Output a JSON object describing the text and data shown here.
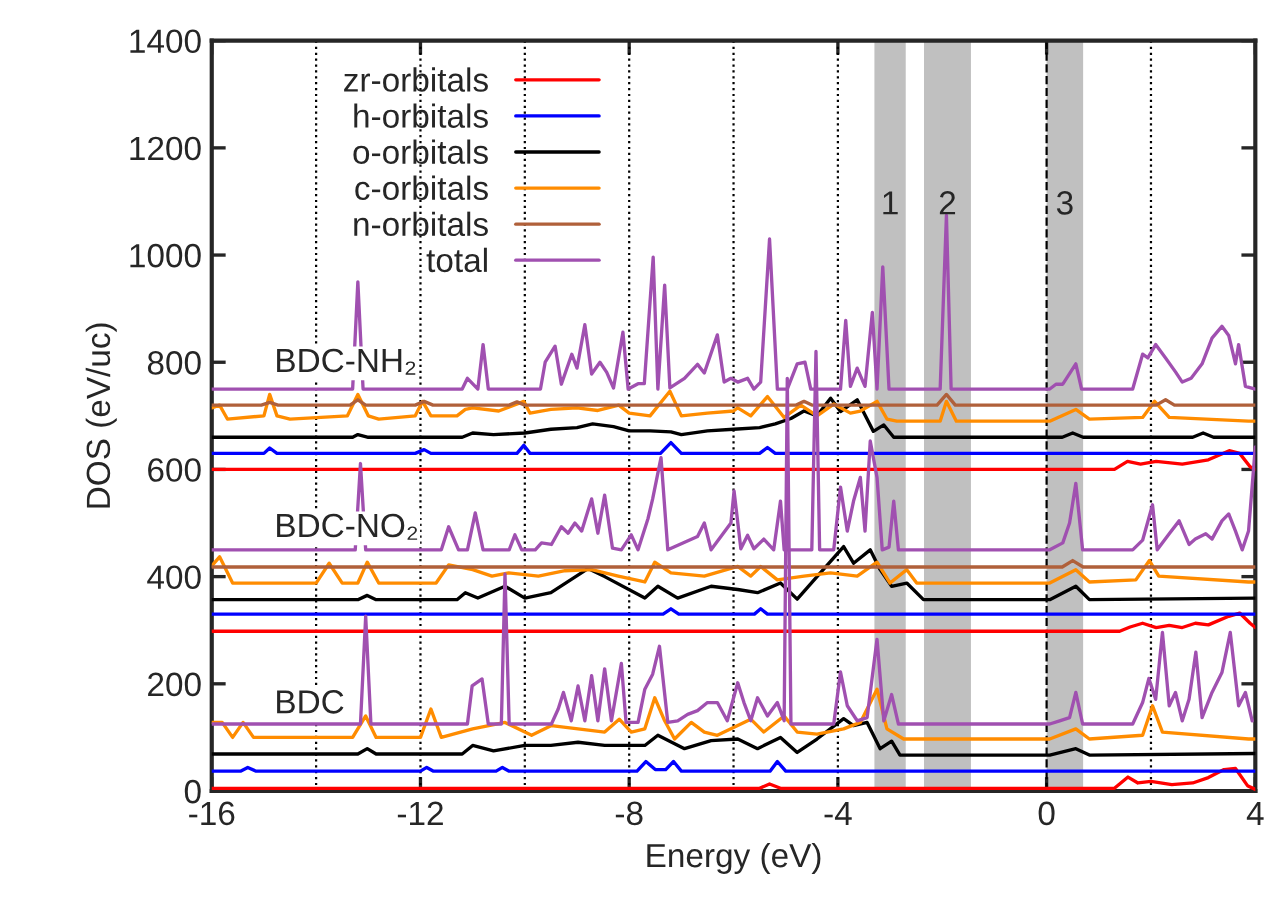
{
  "chart_data": {
    "type": "line",
    "xlabel": "Energy (eV)",
    "ylabel": "DOS (eV/uc)",
    "xlim": [
      -16,
      4
    ],
    "ylim": [
      0,
      1400
    ],
    "xticks": [
      -16,
      -12,
      -8,
      -4,
      0,
      4
    ],
    "yticks": [
      0,
      200,
      400,
      600,
      800,
      1000,
      1200,
      1400
    ],
    "grid": false,
    "legend": "top left",
    "marker": "none",
    "line_style": "solid",
    "series": [
      {
        "name": "zr-orbitals",
        "color": "#ff0000",
        "x": [
          -16,
          1.3,
          1.55,
          1.8,
          2.1,
          2.6,
          3.1,
          3.5,
          3.7,
          3.9,
          4
        ],
        "values": [
          600,
          600,
          615,
          610,
          615,
          610,
          618,
          635,
          630,
          605,
          600
        ]
      },
      {
        "name": "h-orbitals",
        "color": "#0000ff",
        "x": [
          -16,
          -15.0,
          -14.89,
          -14.75,
          -12.1,
          -11.93,
          -11.8,
          -10.15,
          -10.02,
          -9.9,
          -7.4,
          -7.2,
          -7.0,
          -5.5,
          -5.35,
          -5.2,
          4
        ],
        "values": [
          630,
          630,
          640,
          630,
          630,
          637,
          630,
          630,
          645,
          630,
          630,
          650,
          630,
          630,
          641,
          630,
          630
        ]
      },
      {
        "name": "o-orbitals",
        "color": "#000000",
        "x": [
          -16,
          -13.3,
          -13.2,
          -13.0,
          -11.2,
          -11.0,
          -10.6,
          -10.0,
          -9.5,
          -9.0,
          -8.7,
          -8.3,
          -8.0,
          -7.6,
          -7.2,
          -7.0,
          -6.5,
          -6.0,
          -5.5,
          -5.2,
          -4.9,
          -4.65,
          -4.4,
          -4.14,
          -3.95,
          -3.63,
          -3.32,
          -3.12,
          -2.93,
          0.3,
          0.5,
          0.7,
          2.8,
          3.0,
          3.2,
          4
        ],
        "values": [
          660,
          660,
          665,
          660,
          660,
          668,
          665,
          668,
          675,
          678,
          685,
          680,
          672,
          672,
          670,
          665,
          672,
          675,
          678,
          685,
          695,
          709,
          700,
          733,
          708,
          730,
          671,
          683,
          660,
          660,
          668,
          660,
          660,
          668,
          660,
          660
        ]
      },
      {
        "name": "c-orbitals",
        "color": "#ff8c00",
        "x": [
          -16,
          -15.85,
          -15.7,
          -15.0,
          -14.89,
          -14.75,
          -14.5,
          -13.4,
          -13.2,
          -13.0,
          -12.8,
          -12.1,
          -11.96,
          -11.8,
          -11.3,
          -11.14,
          -11.0,
          -10.5,
          -10.02,
          -9.9,
          -9.5,
          -9.0,
          -8.6,
          -8.2,
          -8.0,
          -7.6,
          -7.22,
          -7.0,
          -6.5,
          -6.0,
          -5.92,
          -5.67,
          -5.35,
          -5.03,
          -4.71,
          -4.4,
          -4.08,
          -3.76,
          -3.57,
          -3.25,
          -3.06,
          -2.87,
          -2.04,
          -1.92,
          -1.73,
          0.06,
          0.56,
          0.82,
          1.84,
          2.07,
          2.35,
          3.87,
          4
        ],
        "values": [
          715,
          720,
          694,
          700,
          740,
          700,
          694,
          700,
          740,
          700,
          694,
          700,
          727,
          700,
          700,
          712,
          715,
          709,
          727,
          705,
          712,
          715,
          710,
          720,
          705,
          700,
          746,
          700,
          705,
          709,
          715,
          700,
          736,
          697,
          720,
          700,
          722,
          705,
          709,
          727,
          694,
          690,
          690,
          727,
          690,
          690,
          712,
          694,
          697,
          727,
          697,
          690,
          690
        ]
      },
      {
        "name": "n-orbitals",
        "color": "#b0603a",
        "x": [
          -16,
          -15.05,
          -14.89,
          -14.73,
          -13.35,
          -13.2,
          -13.05,
          -12.1,
          -11.93,
          -11.76,
          -10.3,
          -10.15,
          -10.0,
          -4.8,
          -4.65,
          -4.5,
          -2.1,
          -1.92,
          -1.75,
          2.1,
          2.28,
          2.45,
          4
        ],
        "values": [
          720,
          720,
          725,
          720,
          720,
          730,
          720,
          720,
          727,
          720,
          720,
          726,
          720,
          720,
          727,
          720,
          720,
          740,
          720,
          720,
          730,
          720,
          720
        ]
      },
      {
        "name": "total",
        "color": "#a050b0",
        "x": [
          -16,
          -13.3,
          -13.2,
          -13.1,
          -11.2,
          -11.1,
          -10.9,
          -10.8,
          -10.7,
          -9.7,
          -9.61,
          -9.42,
          -9.3,
          -9.1,
          -9.0,
          -8.85,
          -8.72,
          -8.56,
          -8.43,
          -8.3,
          -8.12,
          -8.02,
          -7.83,
          -7.71,
          -7.54,
          -7.45,
          -7.32,
          -7.22,
          -6.94,
          -6.69,
          -6.56,
          -6.31,
          -6.18,
          -6.05,
          -5.92,
          -5.73,
          -5.61,
          -5.48,
          -5.31,
          -5.16,
          -4.97,
          -4.78,
          -4.63,
          -4.52,
          -3.95,
          -3.85,
          -3.76,
          -3.63,
          -3.48,
          -3.34,
          -3.25,
          -3.14,
          -3.02,
          -2.04,
          -1.92,
          -1.83,
          0.06,
          0.18,
          0.31,
          0.56,
          0.67,
          1.65,
          1.84,
          1.94,
          2.09,
          2.28,
          2.47,
          2.6,
          2.77,
          2.98,
          3.17,
          3.36,
          3.49,
          3.62,
          3.68,
          3.81,
          4.0
        ],
        "values": [
          750,
          750,
          950,
          750,
          750,
          770,
          750,
          833,
          750,
          750,
          800,
          830,
          759,
          815,
          789,
          870,
          778,
          800,
          781,
          752,
          856,
          750,
          760,
          760,
          996,
          750,
          944,
          752,
          770,
          796,
          780,
          851,
          763,
          770,
          763,
          770,
          750,
          763,
          1030,
          750,
          750,
          797,
          800,
          750,
          750,
          878,
          755,
          789,
          755,
          893,
          750,
          978,
          750,
          750,
          1074,
          750,
          750,
          759,
          759,
          797,
          750,
          750,
          815,
          808,
          833,
          808,
          782,
          763,
          770,
          797,
          845,
          867,
          850,
          797,
          833,
          755,
          750
        ]
      },
      {
        "color": "#ff0000",
        "x": [
          -16,
          1.4,
          1.6,
          1.84,
          2.1,
          2.35,
          2.6,
          2.85,
          3.1,
          3.49,
          3.7,
          3.9,
          4
        ],
        "values": [
          298,
          298,
          306,
          313,
          305,
          309,
          305,
          313,
          310,
          326,
          332,
          313,
          305
        ]
      },
      {
        "color": "#0000ff",
        "x": [
          -16,
          -7.35,
          -7.2,
          -7.05,
          -5.6,
          -5.48,
          -5.35,
          4
        ],
        "values": [
          330,
          330,
          340,
          330,
          330,
          340,
          330,
          330
        ]
      },
      {
        "color": "#000000",
        "x": [
          -16,
          -13.2,
          -13.02,
          -12.85,
          -11.3,
          -11.14,
          -10.9,
          -10.38,
          -10.0,
          -9.5,
          -8.79,
          -8.47,
          -7.7,
          -7.45,
          -7.07,
          -6.43,
          -5.92,
          -5.54,
          -5.1,
          -4.78,
          -4.4,
          -3.89,
          -3.7,
          -3.38,
          -3.19,
          -2.97,
          -2.68,
          -2.36,
          0.06,
          0.56,
          0.82,
          4
        ],
        "values": [
          357,
          357,
          365,
          357,
          357,
          370,
          360,
          382,
          360,
          370,
          415,
          400,
          360,
          382,
          360,
          382,
          376,
          370,
          388,
          358,
          400,
          456,
          425,
          450,
          413,
          382,
          388,
          357,
          357,
          382,
          357,
          360
        ]
      },
      {
        "color": "#ff8c00",
        "x": [
          -16,
          -15.85,
          -15.6,
          -14.0,
          -13.75,
          -13.5,
          -13.2,
          -13.02,
          -12.8,
          -11.7,
          -11.46,
          -11.0,
          -10.63,
          -10.31,
          -9.74,
          -9.23,
          -8.72,
          -8.21,
          -7.7,
          -7.51,
          -7.2,
          -6.56,
          -5.92,
          -5.67,
          -5.48,
          -5.16,
          -4.65,
          -4.14,
          -3.63,
          -3.25,
          -3.0,
          -2.68,
          -2.49,
          0.06,
          0.56,
          0.82,
          1.71,
          1.97,
          2.15,
          3.87,
          4
        ],
        "values": [
          420,
          437,
          388,
          388,
          425,
          388,
          388,
          427,
          388,
          388,
          422,
          413,
          401,
          407,
          401,
          411,
          413,
          401,
          390,
          427,
          407,
          401,
          419,
          401,
          419,
          394,
          401,
          407,
          401,
          427,
          388,
          413,
          388,
          388,
          413,
          390,
          394,
          430,
          401,
          390,
          390
        ]
      },
      {
        "color": "#b0603a",
        "x": [
          -16,
          0.3,
          0.5,
          0.7,
          4
        ],
        "values": [
          418,
          418,
          430,
          418,
          418
        ]
      },
      {
        "color": "#a050b0",
        "x": [
          -16,
          -13.25,
          -13.15,
          -13.05,
          -11.6,
          -11.46,
          -11.27,
          -11.1,
          -10.95,
          -10.8,
          -10.3,
          -10.19,
          -10.06,
          -9.8,
          -9.68,
          -9.49,
          -9.3,
          -9.17,
          -9.04,
          -8.91,
          -8.72,
          -8.6,
          -8.47,
          -8.32,
          -8.15,
          -7.96,
          -7.83,
          -7.64,
          -7.55,
          -7.39,
          -7.26,
          -6.69,
          -6.56,
          -6.43,
          -6.05,
          -5.99,
          -5.86,
          -5.73,
          -5.61,
          -5.42,
          -5.23,
          -5.1,
          -5.03,
          -4.5,
          -4.42,
          -4.35,
          -4.08,
          -3.95,
          -3.82,
          -3.7,
          -3.57,
          -3.48,
          -3.38,
          -3.25,
          -3.15,
          -3.02,
          -2.93,
          -2.84,
          0.06,
          0.31,
          0.44,
          0.56,
          0.69,
          1.65,
          1.84,
          2.03,
          2.12,
          2.35,
          2.54,
          2.73,
          2.85,
          3.05,
          3.17,
          3.36,
          3.49,
          3.62,
          3.75,
          3.87,
          4.0
        ],
        "values": [
          450,
          450,
          611,
          450,
          450,
          493,
          450,
          450,
          519,
          450,
          450,
          478,
          450,
          450,
          463,
          460,
          493,
          481,
          500,
          485,
          545,
          481,
          552,
          453,
          450,
          478,
          450,
          508,
          545,
          622,
          450,
          475,
          500,
          450,
          500,
          560,
          452,
          477,
          452,
          470,
          450,
          541,
          450,
          450,
          820,
          450,
          450,
          567,
          485,
          541,
          585,
          485,
          653,
          585,
          450,
          455,
          541,
          450,
          450,
          463,
          500,
          574,
          450,
          450,
          468,
          534,
          450,
          480,
          504,
          460,
          470,
          480,
          470,
          504,
          517,
          485,
          450,
          485,
          642
        ]
      },
      {
        "color": "#ff0000",
        "x": [
          -16,
          -5.5,
          -5.31,
          -5.1,
          1.3,
          1.56,
          1.75,
          2.0,
          2.4,
          2.8,
          3.1,
          3.4,
          3.62,
          3.85,
          4
        ],
        "values": [
          5,
          5,
          13,
          5,
          5,
          26,
          15,
          18,
          12,
          15,
          25,
          40,
          42,
          10,
          3
        ]
      },
      {
        "color": "#0000ff",
        "x": [
          -16,
          -15.45,
          -15.31,
          -15.15,
          -12.0,
          -11.88,
          -11.75,
          -10.55,
          -10.43,
          -10.3,
          -7.85,
          -7.68,
          -7.5,
          -7.3,
          -7.15,
          -7.0,
          -5.3,
          -5.16,
          -5.0,
          4
        ],
        "values": [
          37,
          37,
          44,
          37,
          37,
          44,
          37,
          37,
          44,
          37,
          37,
          55,
          40,
          40,
          55,
          37,
          37,
          55,
          37,
          37
        ]
      },
      {
        "color": "#000000",
        "x": [
          -16,
          -13.2,
          -13.02,
          -12.85,
          -11.2,
          -11.0,
          -10.6,
          -10.0,
          -9.5,
          -8.98,
          -8.47,
          -7.7,
          -7.45,
          -6.94,
          -6.43,
          -5.92,
          -5.54,
          -5.1,
          -4.78,
          -4.4,
          -3.89,
          -3.7,
          -3.44,
          -3.19,
          -2.97,
          -2.81,
          0.06,
          0.56,
          0.82,
          4
        ],
        "values": [
          69,
          69,
          79,
          69,
          69,
          85,
          75,
          85,
          85,
          91,
          85,
          85,
          104,
          79,
          94,
          97,
          79,
          100,
          72,
          97,
          135,
          122,
          128,
          79,
          93,
          67,
          67,
          79,
          67,
          70
        ]
      },
      {
        "color": "#ff8c00",
        "x": [
          -16,
          -15.8,
          -15.6,
          -15.4,
          -15.2,
          -13.3,
          -13.05,
          -12.85,
          -12.0,
          -11.8,
          -11.6,
          -11.0,
          -10.38,
          -9.87,
          -9.49,
          -8.98,
          -8.47,
          -8.19,
          -7.96,
          -7.7,
          -7.51,
          -7.32,
          -7.13,
          -6.81,
          -6.56,
          -6.31,
          -5.92,
          -5.67,
          -5.42,
          -5.03,
          -4.78,
          -4.4,
          -3.89,
          -3.57,
          -3.25,
          -3.06,
          -2.74,
          0.06,
          0.56,
          0.82,
          1.84,
          2.03,
          2.22,
          3.87,
          4
        ],
        "values": [
          128,
          128,
          100,
          128,
          100,
          100,
          140,
          100,
          100,
          153,
          100,
          116,
          128,
          104,
          122,
          116,
          110,
          134,
          110,
          116,
          174,
          131,
          97,
          128,
          110,
          104,
          122,
          134,
          110,
          140,
          110,
          106,
          116,
          128,
          190,
          116,
          97,
          97,
          116,
          97,
          104,
          159,
          110,
          97,
          97
        ]
      },
      {
        "color": "#a050b0",
        "x": [
          -16,
          -13.15,
          -13.05,
          -12.95,
          -11.1,
          -11.01,
          -10.82,
          -10.7,
          -10.45,
          -10.38,
          -10.3,
          -9.49,
          -9.36,
          -9.26,
          -9.11,
          -8.98,
          -8.85,
          -8.72,
          -8.6,
          -8.47,
          -8.34,
          -8.15,
          -8.06,
          -7.83,
          -7.7,
          -7.55,
          -7.42,
          -7.26,
          -7.07,
          -6.88,
          -6.69,
          -6.5,
          -6.31,
          -6.12,
          -5.92,
          -5.8,
          -5.67,
          -5.54,
          -5.35,
          -5.16,
          -5.03,
          -4.97,
          -4.9,
          -4.08,
          -3.95,
          -3.82,
          -3.63,
          -3.44,
          -3.25,
          -3.12,
          -2.97,
          -2.84,
          0.06,
          0.25,
          0.44,
          0.56,
          0.69,
          1.65,
          1.84,
          1.96,
          2.09,
          2.22,
          2.35,
          2.47,
          2.6,
          2.73,
          2.86,
          2.98,
          3.17,
          3.36,
          3.52,
          3.68,
          3.81,
          3.94
        ],
        "values": [
          125,
          125,
          326,
          125,
          125,
          196,
          209,
          125,
          125,
          405,
          125,
          125,
          153,
          184,
          131,
          196,
          131,
          215,
          131,
          228,
          131,
          238,
          128,
          128,
          190,
          218,
          270,
          128,
          131,
          143,
          150,
          165,
          165,
          131,
          202,
          165,
          131,
          174,
          140,
          165,
          131,
          770,
          125,
          125,
          222,
          159,
          131,
          137,
          283,
          131,
          180,
          125,
          125,
          131,
          137,
          184,
          125,
          125,
          165,
          210,
          171,
          296,
          159,
          184,
          131,
          171,
          259,
          137,
          184,
          221,
          296,
          159,
          184,
          131
        ]
      }
    ],
    "bands": [
      {
        "axis": "x",
        "from": -3.3,
        "to": -2.7,
        "label": "1",
        "color": "#c0c0c0"
      },
      {
        "axis": "x",
        "from": -2.35,
        "to": -1.45,
        "label": "2",
        "color": "#c0c0c0"
      },
      {
        "axis": "x",
        "from": 0,
        "to": 0.7,
        "label": "3",
        "color": "#c0c0c0"
      }
    ],
    "ref_lines": [
      {
        "axis": "x",
        "value": -14,
        "line_style": "dotted"
      },
      {
        "axis": "x",
        "value": -12,
        "line_style": "dotted"
      },
      {
        "axis": "x",
        "value": -10,
        "line_style": "dotted"
      },
      {
        "axis": "x",
        "value": -8,
        "line_style": "dotted"
      },
      {
        "axis": "x",
        "value": -6,
        "line_style": "dotted"
      },
      {
        "axis": "x",
        "value": -4,
        "line_style": "dotted"
      },
      {
        "axis": "x",
        "value": 0,
        "line_style": "dashed"
      },
      {
        "axis": "x",
        "value": 2,
        "line_style": "dotted"
      }
    ],
    "annotations": [
      "BDC-NH₂",
      "BDC-NO₂",
      "BDC"
    ]
  }
}
